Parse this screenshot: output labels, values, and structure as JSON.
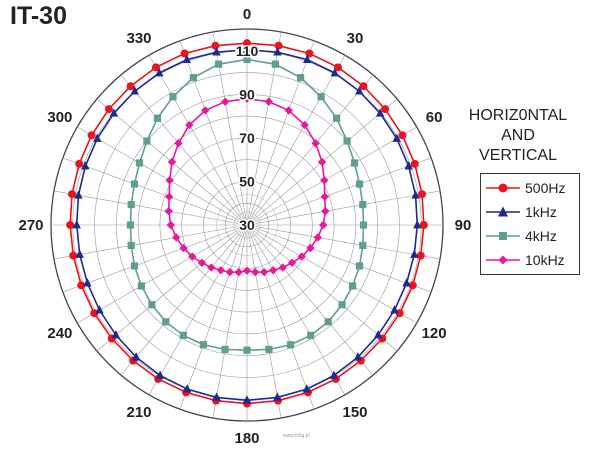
{
  "header": {
    "model": "IT-30"
  },
  "legend": {
    "heading": [
      "HORIZ0NTAL",
      "AND",
      "VERTICAL"
    ]
  },
  "credit": "www.ts5g.pl",
  "chart_data": {
    "type": "polar-line",
    "title": "IT-30",
    "angle_labels": [
      "0",
      "30",
      "60",
      "90",
      "120",
      "150",
      "180",
      "210",
      "240",
      "270",
      "300",
      "330"
    ],
    "radial_labels": [
      "30",
      "50",
      "70",
      "90",
      "110"
    ],
    "radial_range": [
      30,
      120
    ],
    "grid": true,
    "legend_position": "right",
    "series": [
      {
        "name": "500Hz",
        "color": "#e8141e",
        "marker": "circle",
        "points": [
          [
            0,
            113.5
          ],
          [
            10,
            113.6
          ],
          [
            20,
            113.8
          ],
          [
            30,
            113.6
          ],
          [
            40,
            113.2
          ],
          [
            50,
            112.8
          ],
          [
            60,
            112.4
          ],
          [
            70,
            112.0
          ],
          [
            80,
            111.6
          ],
          [
            90,
            111.2
          ],
          [
            100,
            111.0
          ],
          [
            110,
            111.0
          ],
          [
            120,
            111.0
          ],
          [
            130,
            111.1
          ],
          [
            140,
            111.3
          ],
          [
            150,
            111.6
          ],
          [
            160,
            111.8
          ],
          [
            170,
            111.9
          ],
          [
            180,
            112.0
          ],
          [
            190,
            111.9
          ],
          [
            200,
            111.8
          ],
          [
            210,
            111.6
          ],
          [
            220,
            111.3
          ],
          [
            230,
            111.1
          ],
          [
            240,
            111.0
          ],
          [
            250,
            111.0
          ],
          [
            260,
            111.0
          ],
          [
            270,
            111.2
          ],
          [
            280,
            111.6
          ],
          [
            290,
            112.0
          ],
          [
            300,
            112.4
          ],
          [
            310,
            112.8
          ],
          [
            320,
            113.2
          ],
          [
            330,
            113.6
          ],
          [
            340,
            113.8
          ],
          [
            350,
            113.6
          ]
        ]
      },
      {
        "name": "1kHz",
        "color": "#1f2a8f",
        "marker": "triangle",
        "points": [
          [
            0,
            110.5
          ],
          [
            10,
            110.6
          ],
          [
            20,
            110.8
          ],
          [
            30,
            110.6
          ],
          [
            40,
            110.2
          ],
          [
            50,
            109.8
          ],
          [
            60,
            109.4
          ],
          [
            70,
            109.0
          ],
          [
            80,
            108.6
          ],
          [
            90,
            108.2
          ],
          [
            100,
            108.0
          ],
          [
            110,
            108.0
          ],
          [
            120,
            108.2
          ],
          [
            130,
            108.6
          ],
          [
            140,
            109.2
          ],
          [
            150,
            109.8
          ],
          [
            160,
            110.2
          ],
          [
            170,
            110.4
          ],
          [
            180,
            110.5
          ],
          [
            190,
            110.4
          ],
          [
            200,
            110.2
          ],
          [
            210,
            109.8
          ],
          [
            220,
            109.2
          ],
          [
            230,
            108.6
          ],
          [
            240,
            108.2
          ],
          [
            250,
            108.0
          ],
          [
            260,
            108.0
          ],
          [
            270,
            108.2
          ],
          [
            280,
            108.6
          ],
          [
            290,
            109.0
          ],
          [
            300,
            109.4
          ],
          [
            310,
            109.8
          ],
          [
            320,
            110.2
          ],
          [
            330,
            110.6
          ],
          [
            340,
            110.8
          ],
          [
            350,
            110.6
          ]
        ]
      },
      {
        "name": "4kHz",
        "color": "#5f9e90",
        "marker": "square",
        "points": [
          [
            0,
            106
          ],
          [
            10,
            105
          ],
          [
            20,
            102
          ],
          [
            30,
            98
          ],
          [
            40,
            94
          ],
          [
            50,
            90
          ],
          [
            60,
            87
          ],
          [
            70,
            85
          ],
          [
            80,
            84
          ],
          [
            90,
            83.5
          ],
          [
            100,
            84
          ],
          [
            110,
            85
          ],
          [
            120,
            86
          ],
          [
            130,
            87
          ],
          [
            140,
            88
          ],
          [
            150,
            88.5
          ],
          [
            160,
            88.5
          ],
          [
            170,
            88
          ],
          [
            180,
            87.5
          ],
          [
            190,
            88
          ],
          [
            200,
            88.5
          ],
          [
            210,
            88.5
          ],
          [
            220,
            88
          ],
          [
            230,
            87
          ],
          [
            240,
            86
          ],
          [
            250,
            85
          ],
          [
            260,
            84
          ],
          [
            270,
            83.5
          ],
          [
            280,
            84
          ],
          [
            290,
            85
          ],
          [
            300,
            87
          ],
          [
            310,
            90
          ],
          [
            320,
            94
          ],
          [
            330,
            98
          ],
          [
            340,
            102
          ],
          [
            350,
            105
          ]
        ]
      },
      {
        "name": "10kHz",
        "color": "#e8189a",
        "marker": "diamond",
        "points": [
          [
            0,
            88
          ],
          [
            10,
            87.5
          ],
          [
            20,
            86
          ],
          [
            30,
            83
          ],
          [
            40,
            79
          ],
          [
            50,
            75
          ],
          [
            60,
            71
          ],
          [
            70,
            68
          ],
          [
            80,
            66.5
          ],
          [
            90,
            65
          ],
          [
            100,
            63
          ],
          [
            110,
            61
          ],
          [
            120,
            59
          ],
          [
            130,
            57
          ],
          [
            140,
            55.5
          ],
          [
            150,
            54
          ],
          [
            160,
            53
          ],
          [
            170,
            52
          ],
          [
            180,
            51
          ],
          [
            190,
            52
          ],
          [
            200,
            53
          ],
          [
            210,
            54
          ],
          [
            220,
            55.5
          ],
          [
            230,
            57
          ],
          [
            240,
            59
          ],
          [
            250,
            61
          ],
          [
            260,
            63
          ],
          [
            270,
            65
          ],
          [
            280,
            66.5
          ],
          [
            290,
            68
          ],
          [
            300,
            71
          ],
          [
            310,
            75
          ],
          [
            320,
            79
          ],
          [
            330,
            83
          ],
          [
            340,
            86
          ],
          [
            350,
            87.5
          ]
        ]
      }
    ]
  }
}
